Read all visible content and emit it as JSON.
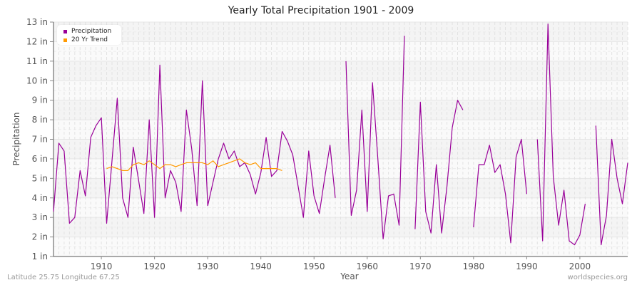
{
  "chart_data": {
    "type": "line",
    "title": "Yearly Total Precipitation 1901 - 2009",
    "xlabel": "Year",
    "ylabel": "Precipitation",
    "xlim": [
      1901,
      2009
    ],
    "ylim": [
      1,
      13
    ],
    "y_unit": "in",
    "x_ticks": [
      1910,
      1920,
      1930,
      1940,
      1950,
      1960,
      1970,
      1980,
      1990,
      2000
    ],
    "y_ticks": [
      1,
      2,
      3,
      4,
      5,
      6,
      7,
      8,
      9,
      10,
      11,
      12,
      13
    ],
    "y_tick_labels": [
      "1 in",
      "2 in",
      "3 in",
      "4 in",
      "5 in",
      "6 in",
      "7 in",
      "8 in",
      "9 in",
      "10 in",
      "11 in",
      "12 in",
      "13 in"
    ],
    "grid": true,
    "legend_position": "top-left",
    "x": [
      1901,
      1902,
      1903,
      1904,
      1905,
      1906,
      1907,
      1908,
      1909,
      1910,
      1911,
      1912,
      1913,
      1914,
      1915,
      1916,
      1917,
      1918,
      1919,
      1920,
      1921,
      1922,
      1923,
      1924,
      1925,
      1926,
      1927,
      1928,
      1929,
      1930,
      1931,
      1932,
      1933,
      1934,
      1935,
      1936,
      1937,
      1938,
      1939,
      1940,
      1941,
      1942,
      1943,
      1944,
      1945,
      1946,
      1947,
      1948,
      1949,
      1950,
      1951,
      1952,
      1953,
      1954,
      1955,
      1956,
      1957,
      1958,
      1959,
      1960,
      1961,
      1962,
      1963,
      1964,
      1965,
      1966,
      1967,
      1968,
      1969,
      1970,
      1971,
      1972,
      1973,
      1974,
      1975,
      1976,
      1977,
      1978,
      1979,
      1980,
      1981,
      1982,
      1983,
      1984,
      1985,
      1986,
      1987,
      1988,
      1989,
      1990,
      1991,
      1992,
      1993,
      1994,
      1995,
      1996,
      1997,
      1998,
      1999,
      2000,
      2001,
      2002,
      2003,
      2004,
      2005,
      2006,
      2007,
      2008,
      2009
    ],
    "series": [
      {
        "name": "Precipitation",
        "color": "#990099",
        "values": [
          3.3,
          6.8,
          6.4,
          2.7,
          3.0,
          5.4,
          4.1,
          7.1,
          7.7,
          8.1,
          2.7,
          5.9,
          9.1,
          4.0,
          3.0,
          6.6,
          4.9,
          3.2,
          8.0,
          3.0,
          10.8,
          4.0,
          5.4,
          4.8,
          3.3,
          8.5,
          6.5,
          3.6,
          10.0,
          3.6,
          4.8,
          6.0,
          6.8,
          6.0,
          6.4,
          5.6,
          5.8,
          5.2,
          4.2,
          5.3,
          7.1,
          5.1,
          5.4,
          7.4,
          6.9,
          6.2,
          4.6,
          3.0,
          6.4,
          4.1,
          3.2,
          5.0,
          6.7,
          4.0,
          null,
          11.0,
          3.1,
          4.4,
          8.5,
          3.3,
          9.9,
          6.0,
          1.9,
          4.1,
          4.2,
          2.6,
          12.3,
          null,
          2.4,
          8.9,
          3.3,
          2.2,
          5.7,
          2.2,
          4.6,
          7.6,
          9.0,
          8.5,
          null,
          2.5,
          5.7,
          5.7,
          6.7,
          5.3,
          5.7,
          4.2,
          1.7,
          6.1,
          7.0,
          4.2,
          null,
          7.0,
          1.8,
          12.9,
          5.1,
          2.6,
          4.4,
          1.8,
          1.6,
          2.1,
          3.7,
          null,
          7.7,
          1.6,
          3.1,
          7.0,
          5.0,
          3.7,
          5.8
        ]
      },
      {
        "name": "20 Yr Trend",
        "color": "#ff9900",
        "values": [
          null,
          null,
          null,
          null,
          null,
          null,
          null,
          null,
          null,
          null,
          5.5,
          5.6,
          5.5,
          5.4,
          5.4,
          5.7,
          5.8,
          5.7,
          5.9,
          5.7,
          5.5,
          5.7,
          5.7,
          5.6,
          5.7,
          5.8,
          5.8,
          5.8,
          5.8,
          5.7,
          5.9,
          5.6,
          5.7,
          5.8,
          5.9,
          6.0,
          5.8,
          5.7,
          5.8,
          5.5,
          5.5,
          5.5,
          5.5,
          5.4,
          null,
          null,
          null,
          null,
          null,
          null,
          null,
          null,
          null,
          null,
          null,
          null,
          null,
          null,
          null,
          null,
          null,
          null,
          null,
          null,
          null,
          null,
          null,
          null,
          null,
          null,
          null,
          null,
          null,
          null,
          null,
          null,
          null,
          null,
          null,
          null,
          null,
          null,
          null,
          null,
          null,
          null,
          null,
          null,
          null,
          null,
          null,
          null,
          null,
          null,
          null,
          null,
          null,
          null,
          null,
          null,
          null,
          null,
          null,
          null,
          null,
          null,
          null,
          null,
          null
        ]
      }
    ]
  },
  "footer": {
    "location": "Latitude 25.75 Longitude 67.25",
    "source": "worldspecies.org"
  }
}
